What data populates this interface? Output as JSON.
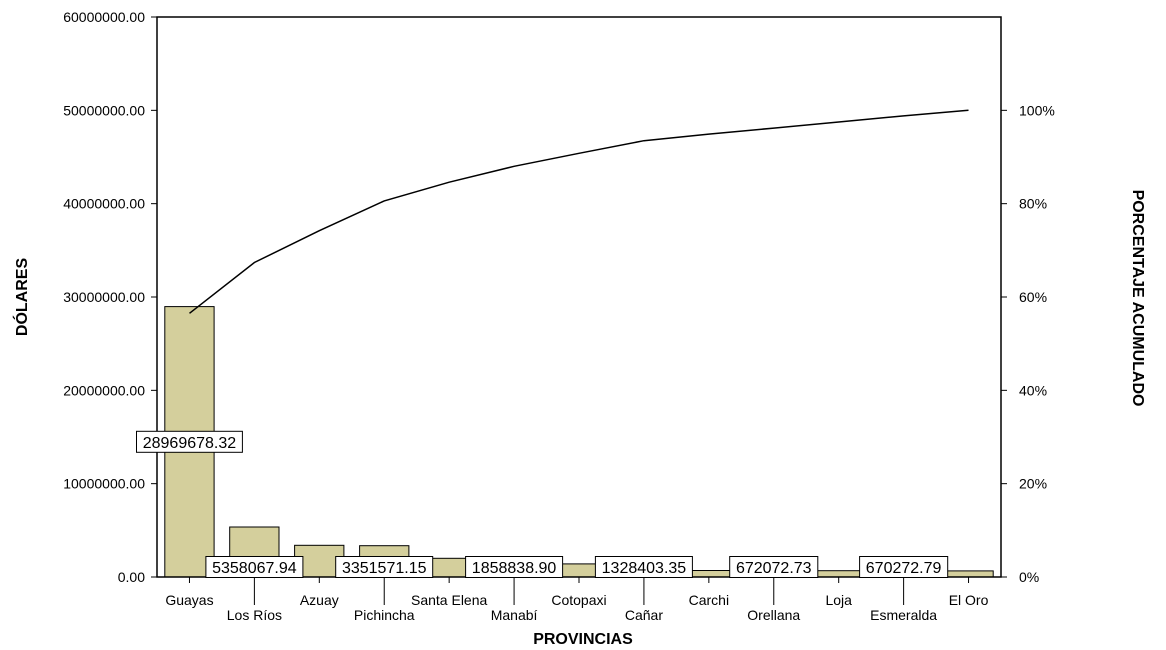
{
  "chart_data": {
    "type": "bar",
    "xlabel": "PROVINCIAS",
    "ylabel": "DÓLARES",
    "y2label": "PORCENTAJE ACUMULADO",
    "ylim": [
      0,
      60000000
    ],
    "y2lim": [
      0,
      100
    ],
    "y_ticks": [
      "0.00",
      "10000000.00",
      "20000000.00",
      "30000000.00",
      "40000000.00",
      "50000000.00",
      "60000000.00"
    ],
    "y2_ticks": [
      "0%",
      "20%",
      "40%",
      "60%",
      "80%",
      "100%"
    ],
    "categories": [
      "Guayas",
      "Los Ríos",
      "Azuay",
      "Pichincha",
      "Santa Elena",
      "Manabí",
      "Cotopaxi",
      "Cañar",
      "Carchi",
      "Orellana",
      "Loja",
      "Esmeralda",
      "El Oro"
    ],
    "values": [
      28969678.32,
      5358067.94,
      3400000,
      3351571.15,
      2000000,
      1858838.9,
      1400000,
      1328403.35,
      700000,
      672072.73,
      680000,
      670272.79,
      650000
    ],
    "data_labels": [
      {
        "index": 0,
        "text": "28969678.32"
      },
      {
        "index": 1,
        "text": "5358067.94"
      },
      {
        "index": 3,
        "text": "3351571.15"
      },
      {
        "index": 5,
        "text": "1858838.90"
      },
      {
        "index": 7,
        "text": "1328403.35"
      },
      {
        "index": 9,
        "text": "672072.73"
      },
      {
        "index": 11,
        "text": "670272.79"
      }
    ],
    "cumulative_percent": [
      56.5,
      67.4,
      74.2,
      80.6,
      84.6,
      88.0,
      90.8,
      93.5,
      94.9,
      96.2,
      97.5,
      98.8,
      100
    ],
    "bar_color": "#d4cf9c",
    "grid": false
  }
}
